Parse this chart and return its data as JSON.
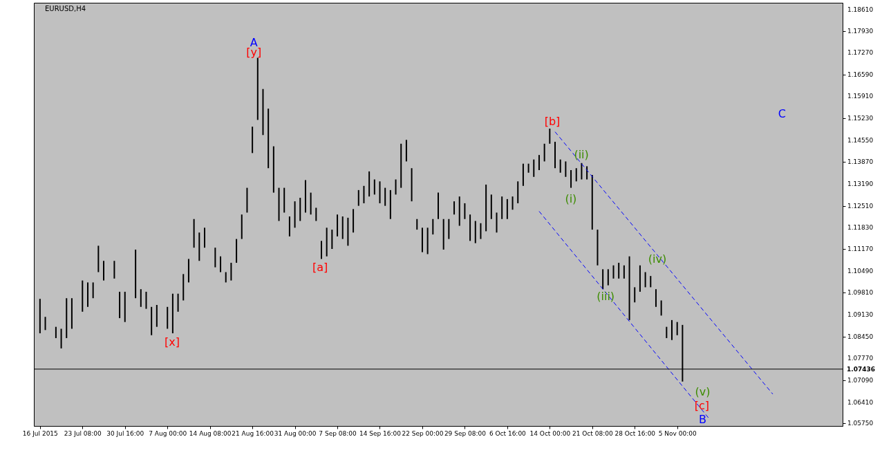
{
  "chart_data": {
    "type": "bar",
    "title": "EURUSD,H4",
    "categories": [
      "16 Jul 2015",
      null,
      null,
      null,
      null,
      null,
      null,
      null,
      "23 Jul 08:00",
      null,
      null,
      null,
      null,
      null,
      null,
      null,
      "30 Jul 16:00",
      null,
      null,
      null,
      null,
      null,
      null,
      null,
      "7 Aug 00:00",
      null,
      null,
      null,
      null,
      null,
      null,
      null,
      "14 Aug 08:00",
      null,
      null,
      null,
      null,
      null,
      null,
      null,
      "21 Aug 16:00",
      null,
      null,
      null,
      null,
      null,
      null,
      null,
      "31 Aug 00:00",
      null,
      null,
      null,
      null,
      null,
      null,
      null,
      "7 Sep 08:00",
      null,
      null,
      null,
      null,
      null,
      null,
      null,
      "14 Sep 16:00",
      null,
      null,
      null,
      null,
      null,
      null,
      null,
      "22 Sep 00:00",
      null,
      null,
      null,
      null,
      null,
      null,
      null,
      "29 Sep 08:00",
      null,
      null,
      null,
      null,
      null,
      null,
      null,
      "6 Oct 16:00",
      null,
      null,
      null,
      null,
      null,
      null,
      null,
      "14 Oct 00:00",
      null,
      null,
      null,
      null,
      null,
      null,
      null,
      "21 Oct 08:00",
      null,
      null,
      null,
      null,
      null,
      null,
      null,
      "28 Oct 16:00",
      null,
      null,
      null,
      null,
      null,
      null,
      null,
      "5 Nov 00:00",
      null,
      null,
      null,
      null,
      null,
      null,
      null,
      null,
      null,
      null,
      null,
      null,
      null,
      null,
      null,
      null,
      null,
      null,
      null,
      null,
      null,
      null,
      null,
      null,
      null,
      null,
      null,
      null,
      null,
      null
    ],
    "ylim": [
      1.0567,
      1.1882
    ],
    "yticks": [
      {
        "value": 1.1861,
        "label": "1.18610"
      },
      {
        "value": 1.1793,
        "label": "1.17930"
      },
      {
        "value": 1.1727,
        "label": "1.17270"
      },
      {
        "value": 1.1659,
        "label": "1.16590"
      },
      {
        "value": 1.1591,
        "label": "1.15910"
      },
      {
        "value": 1.1523,
        "label": "1.15230"
      },
      {
        "value": 1.1455,
        "label": "1.14550"
      },
      {
        "value": 1.1387,
        "label": "1.13870"
      },
      {
        "value": 1.1319,
        "label": "1.13190"
      },
      {
        "value": 1.1251,
        "label": "1.12510"
      },
      {
        "value": 1.1183,
        "label": "1.11830"
      },
      {
        "value": 1.1117,
        "label": "1.11170"
      },
      {
        "value": 1.1049,
        "label": "1.10490"
      },
      {
        "value": 1.0981,
        "label": "1.09810"
      },
      {
        "value": 1.0913,
        "label": "1.09130"
      },
      {
        "value": 1.0845,
        "label": "1.08450"
      },
      {
        "value": 1.0777,
        "label": "1.07770"
      },
      {
        "value": 1.0709,
        "label": "1.07090"
      },
      {
        "value": 1.0641,
        "label": "1.06410"
      },
      {
        "value": 1.0575,
        "label": "1.05750"
      }
    ],
    "grid": false,
    "series": [
      {
        "color": "#000000",
        "base": [
          1.0855,
          1.0865,
          null,
          1.084,
          1.0808,
          1.084,
          1.0869,
          null,
          1.0922,
          1.0937,
          1.0964,
          1.1045,
          1.1019,
          null,
          1.1025,
          1.0902,
          1.089,
          null,
          1.0964,
          1.0937,
          1.0931,
          1.0849,
          1.0875,
          null,
          1.0869,
          1.0855,
          1.0922,
          1.0957,
          1.1013,
          1.1121,
          1.108,
          1.1121,
          null,
          1.106,
          1.1045,
          1.1013,
          1.1019,
          1.1074,
          1.1148,
          1.123,
          1.1415,
          1.1518,
          1.1471,
          1.1368,
          1.1292,
          1.1204,
          1.123,
          1.1156,
          1.1183,
          1.1204,
          1.123,
          1.1224,
          1.1204,
          1.1086,
          1.1094,
          1.1117,
          1.1156,
          1.1148,
          1.1127,
          1.1168,
          1.1251,
          1.1259,
          1.128,
          1.1286,
          1.1259,
          1.1251,
          1.121,
          1.1286,
          1.1307,
          1.1389,
          1.1265,
          1.1177,
          1.1107,
          1.1101,
          1.1162,
          1.121,
          1.1115,
          1.1148,
          1.1224,
          1.1189,
          1.121,
          1.1142,
          1.1135,
          1.1148,
          1.1172,
          1.121,
          1.1168,
          1.121,
          1.121,
          1.1239,
          1.1259,
          1.1313,
          1.1354,
          1.1341,
          1.1362,
          1.1389,
          1.1444,
          1.1368,
          1.1354,
          1.1341,
          1.1307,
          1.1327,
          1.1333,
          1.1333,
          1.1177,
          1.1066,
          1.0992,
          1.1004,
          1.1025,
          1.1025,
          1.1025,
          1.0896,
          1.0951,
          1.0984,
          1.0998,
          1.0998,
          1.0937,
          1.091,
          1.084,
          1.0834,
          1.0849,
          1.0705,
          null,
          null,
          null,
          null,
          null,
          null,
          null,
          null,
          null,
          null,
          null,
          null,
          null,
          null,
          null,
          null,
          null,
          null,
          null,
          null,
          null,
          null,
          null,
          null,
          null,
          null,
          null,
          null,
          null
        ],
        "values": [
          0.0107,
          0.0041,
          null,
          0.0035,
          0.0061,
          0.0124,
          0.0095,
          null,
          0.0097,
          0.0076,
          0.0049,
          0.0082,
          0.0061,
          null,
          0.0055,
          0.0082,
          0.0094,
          null,
          0.0151,
          0.0055,
          0.0053,
          0.0088,
          0.0068,
          null,
          0.0068,
          0.0123,
          0.0056,
          0.0082,
          0.0073,
          0.0089,
          0.0088,
          0.0062,
          null,
          0.0061,
          0.0049,
          0.0032,
          0.0055,
          0.0074,
          0.0076,
          0.0077,
          0.0082,
          0.0193,
          0.0143,
          0.0185,
          0.0144,
          0.0103,
          0.0077,
          0.0062,
          0.0082,
          0.0072,
          0.0101,
          0.0068,
          0.0041,
          0.0056,
          0.0089,
          0.006,
          0.0068,
          0.007,
          0.0087,
          0.0073,
          0.0049,
          0.0054,
          0.0078,
          0.0047,
          0.0068,
          0.0056,
          0.009,
          0.0047,
          0.0137,
          0.0067,
          0.0103,
          0.0033,
          0.0076,
          0.0082,
          0.0048,
          0.0082,
          0.0095,
          0.0062,
          0.0041,
          0.0091,
          0.0049,
          0.0082,
          0.0069,
          0.0049,
          0.0145,
          0.0076,
          0.0062,
          0.007,
          0.0062,
          0.0041,
          0.0068,
          0.0069,
          0.0028,
          0.0054,
          0.0047,
          0.0055,
          0.0047,
          0.0082,
          0.0041,
          0.0048,
          0.0055,
          0.0041,
          0.0051,
          0.0041,
          0.017,
          0.0111,
          0.0062,
          0.005,
          0.0041,
          0.0049,
          0.0041,
          0.0198,
          0.0047,
          0.0082,
          0.0047,
          0.0035,
          0.0055,
          0.0047,
          0.0035,
          0.0062,
          0.0041,
          0.0176,
          null,
          null,
          null,
          null,
          null,
          null,
          null,
          null,
          null,
          null,
          null,
          null,
          null,
          null,
          null,
          null,
          null,
          null,
          null,
          null,
          null,
          null,
          null,
          null,
          null,
          null,
          null,
          null,
          null
        ]
      },
      {
        "type": "line",
        "color": "#0000ff",
        "line_style": "dashed",
        "values": [
          null,
          null,
          null,
          null,
          null,
          null,
          null,
          null,
          null,
          null,
          null,
          null,
          null,
          null,
          null,
          null,
          null,
          null,
          null,
          null,
          null,
          null,
          null,
          null,
          null,
          null,
          null,
          null,
          null,
          null,
          null,
          null,
          null,
          null,
          null,
          null,
          null,
          null,
          null,
          null,
          null,
          null,
          null,
          null,
          null,
          null,
          null,
          null,
          null,
          null,
          null,
          null,
          null,
          null,
          null,
          null,
          null,
          null,
          null,
          null,
          null,
          null,
          null,
          null,
          null,
          null,
          null,
          null,
          null,
          null,
          null,
          null,
          null,
          null,
          null,
          null,
          null,
          null,
          null,
          null,
          null,
          null,
          null,
          null,
          null,
          null,
          null,
          null,
          null,
          null,
          null,
          null,
          null,
          null,
          null,
          null,
          null,
          1.1481,
          null,
          null,
          null,
          null,
          null,
          null,
          null,
          null,
          null,
          null,
          null,
          null,
          null,
          null,
          null,
          null,
          null,
          null,
          null,
          null,
          null,
          null,
          null,
          null,
          null,
          null,
          null,
          null,
          null,
          null,
          null,
          null,
          null,
          null,
          null,
          null,
          null,
          null,
          null,
          null,
          1.0666,
          null,
          null,
          null,
          null,
          null,
          null,
          null,
          null,
          null,
          null,
          null,
          null
        ]
      },
      {
        "type": "line",
        "color": "#0000ff",
        "line_style": "dashed",
        "values": [
          null,
          null,
          null,
          null,
          null,
          null,
          null,
          null,
          null,
          null,
          null,
          null,
          null,
          null,
          null,
          null,
          null,
          null,
          null,
          null,
          null,
          null,
          null,
          null,
          null,
          null,
          null,
          null,
          null,
          null,
          null,
          null,
          null,
          null,
          null,
          null,
          null,
          null,
          null,
          null,
          null,
          null,
          null,
          null,
          null,
          null,
          null,
          null,
          null,
          null,
          null,
          null,
          null,
          null,
          null,
          null,
          null,
          null,
          null,
          null,
          null,
          null,
          null,
          null,
          null,
          null,
          null,
          null,
          null,
          null,
          null,
          null,
          null,
          null,
          null,
          null,
          null,
          null,
          null,
          null,
          null,
          null,
          null,
          null,
          null,
          null,
          null,
          null,
          null,
          null,
          null,
          null,
          null,
          null,
          1.1234,
          null,
          null,
          null,
          null,
          null,
          null,
          null,
          null,
          null,
          null,
          null,
          null,
          null,
          null,
          null,
          null,
          null,
          null,
          null,
          null,
          null,
          null,
          null,
          null,
          null,
          null,
          null,
          null,
          null,
          null,
          null,
          1.059,
          null,
          null,
          null,
          null,
          null,
          null,
          null,
          null,
          null,
          null,
          null,
          null,
          null,
          null,
          null,
          null,
          null,
          null,
          null,
          null,
          null,
          null,
          null,
          null
        ]
      }
    ],
    "ref_lines": [
      {
        "axis": "y",
        "value": 1.07436,
        "label": "1.07436",
        "color": "#000000"
      }
    ],
    "annotations": [
      "A",
      "[y]",
      "[x]",
      "[a]",
      "[b]",
      "(ii)",
      {
        "text": "(i)",
        "y": 1.1307
      },
      "(iii)",
      "(iv)",
      "(v)",
      "[c]",
      "B",
      "C"
    ]
  }
}
